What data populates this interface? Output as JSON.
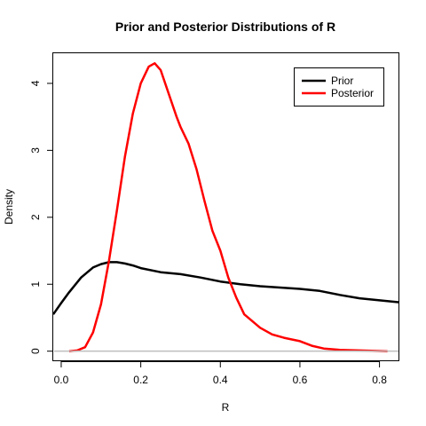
{
  "chart_data": {
    "type": "line",
    "title": "Prior and Posterior Distributions of R",
    "xlabel": "R",
    "ylabel": "Density",
    "xlim": [
      -0.02,
      0.85
    ],
    "ylim": [
      -0.15,
      4.45
    ],
    "x_ticks": [
      0.0,
      0.2,
      0.4,
      0.6,
      0.8
    ],
    "x_tick_labels": [
      "0.0",
      "0.2",
      "0.4",
      "0.6",
      "0.8"
    ],
    "y_ticks": [
      0,
      1,
      2,
      3,
      4
    ],
    "y_tick_labels": [
      "0",
      "1",
      "2",
      "3",
      "4"
    ],
    "zero_line": true,
    "zero_line_color": "#bebebe",
    "legend": {
      "placement": "top-right",
      "entries": [
        "Prior",
        "Posterior"
      ]
    },
    "series": [
      {
        "name": "Prior",
        "color": "#000000",
        "x": [
          -0.02,
          0.0,
          0.02,
          0.05,
          0.08,
          0.1,
          0.12,
          0.14,
          0.16,
          0.18,
          0.2,
          0.25,
          0.3,
          0.35,
          0.4,
          0.45,
          0.5,
          0.55,
          0.6,
          0.65,
          0.7,
          0.75,
          0.8,
          0.85
        ],
        "y": [
          0.55,
          0.72,
          0.88,
          1.1,
          1.25,
          1.3,
          1.33,
          1.33,
          1.31,
          1.28,
          1.24,
          1.18,
          1.15,
          1.1,
          1.04,
          1.0,
          0.97,
          0.95,
          0.93,
          0.9,
          0.84,
          0.79,
          0.76,
          0.73
        ]
      },
      {
        "name": "Posterior",
        "color": "#ff0000",
        "x": [
          0.02,
          0.04,
          0.06,
          0.08,
          0.1,
          0.12,
          0.14,
          0.16,
          0.18,
          0.2,
          0.22,
          0.235,
          0.25,
          0.27,
          0.29,
          0.3,
          0.32,
          0.34,
          0.36,
          0.38,
          0.4,
          0.42,
          0.44,
          0.46,
          0.48,
          0.5,
          0.53,
          0.56,
          0.6,
          0.63,
          0.66,
          0.7,
          0.75,
          0.82
        ],
        "y": [
          0.0,
          0.01,
          0.06,
          0.28,
          0.7,
          1.35,
          2.1,
          2.9,
          3.55,
          4.0,
          4.25,
          4.3,
          4.2,
          3.85,
          3.5,
          3.35,
          3.1,
          2.72,
          2.25,
          1.8,
          1.5,
          1.1,
          0.8,
          0.55,
          0.45,
          0.35,
          0.25,
          0.2,
          0.15,
          0.08,
          0.04,
          0.02,
          0.01,
          0.0
        ]
      }
    ]
  }
}
